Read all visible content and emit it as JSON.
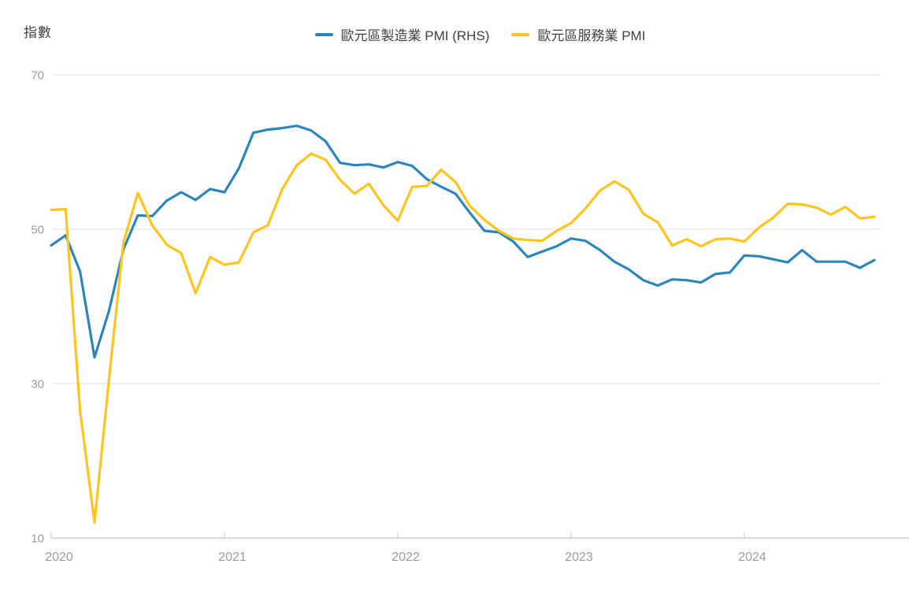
{
  "header": {
    "y_axis_title": "指數"
  },
  "chart_data": {
    "type": "line",
    "title": "",
    "y_axis_title": "指數",
    "x": [
      "2020-01",
      "2020-02",
      "2020-03",
      "2020-04",
      "2020-05",
      "2020-06",
      "2020-07",
      "2020-08",
      "2020-09",
      "2020-10",
      "2020-11",
      "2020-12",
      "2021-01",
      "2021-02",
      "2021-03",
      "2021-04",
      "2021-05",
      "2021-06",
      "2021-07",
      "2021-08",
      "2021-09",
      "2021-10",
      "2021-11",
      "2021-12",
      "2022-01",
      "2022-02",
      "2022-03",
      "2022-04",
      "2022-05",
      "2022-06",
      "2022-07",
      "2022-08",
      "2022-09",
      "2022-10",
      "2022-11",
      "2022-12",
      "2023-01",
      "2023-02",
      "2023-03",
      "2023-04",
      "2023-05",
      "2023-06",
      "2023-07",
      "2023-08",
      "2023-09",
      "2023-10",
      "2023-11",
      "2023-12",
      "2024-01",
      "2024-02",
      "2024-03",
      "2024-04",
      "2024-05",
      "2024-06",
      "2024-07",
      "2024-08",
      "2024-09",
      "2024-10"
    ],
    "series": [
      {
        "key": "manufacturing-pmi",
        "name": "歐元區製造業 PMI (RHS)",
        "color": "#2D86BB",
        "values": [
          47.9,
          49.2,
          44.5,
          33.4,
          39.4,
          47.4,
          51.8,
          51.7,
          53.7,
          54.8,
          53.8,
          55.2,
          54.8,
          57.9,
          62.5,
          62.9,
          63.1,
          63.4,
          62.8,
          61.4,
          58.6,
          58.3,
          58.4,
          58.0,
          58.7,
          58.2,
          56.5,
          55.5,
          54.6,
          52.1,
          49.8,
          49.6,
          48.4,
          46.4,
          47.1,
          47.8,
          48.8,
          48.5,
          47.3,
          45.8,
          44.8,
          43.4,
          42.7,
          43.5,
          43.4,
          43.1,
          44.2,
          44.4,
          46.6,
          46.5,
          46.1,
          45.7,
          47.3,
          45.8,
          45.8,
          45.8,
          45.0,
          46.0
        ]
      },
      {
        "key": "services-pmi",
        "name": "歐元區服務業 PMI",
        "color": "#FFC41D",
        "values": [
          52.5,
          52.6,
          26.4,
          12.0,
          30.5,
          48.3,
          54.7,
          50.5,
          48.0,
          46.9,
          41.7,
          46.4,
          45.4,
          45.7,
          49.6,
          50.5,
          55.2,
          58.3,
          59.8,
          59.0,
          56.4,
          54.6,
          55.9,
          53.1,
          51.1,
          55.5,
          55.6,
          57.7,
          56.1,
          53.0,
          51.2,
          49.8,
          48.8,
          48.6,
          48.5,
          49.8,
          50.8,
          52.7,
          55.0,
          56.2,
          55.1,
          52.0,
          50.9,
          47.9,
          48.7,
          47.8,
          48.7,
          48.8,
          48.4,
          50.2,
          51.5,
          53.3,
          53.2,
          52.8,
          51.9,
          52.9,
          51.4,
          51.6
        ]
      }
    ],
    "ylim": [
      10,
      70
    ],
    "y_ticks": [
      70,
      50,
      30,
      10
    ],
    "x_ticks": [
      "2020",
      "2021",
      "2022",
      "2023",
      "2024"
    ],
    "grid": "horizontal",
    "legend_position": "top-center",
    "colors": {
      "gridline": "#E7E7E7",
      "axis_line": "#CFCFCF",
      "tick_label": "#9C9C9C",
      "text": "#404040"
    }
  }
}
